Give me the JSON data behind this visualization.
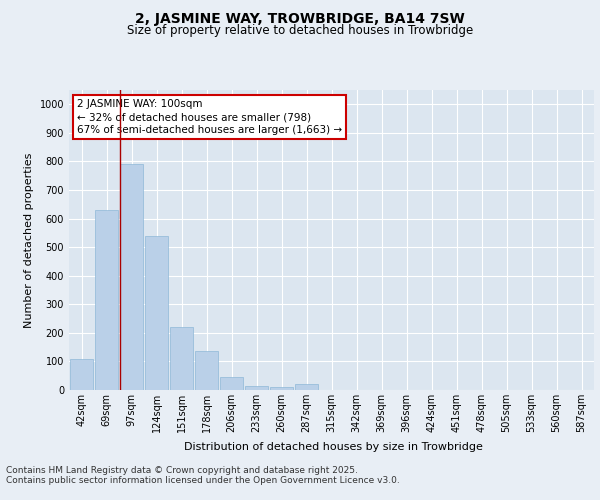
{
  "title": "2, JASMINE WAY, TROWBRIDGE, BA14 7SW",
  "subtitle": "Size of property relative to detached houses in Trowbridge",
  "xlabel": "Distribution of detached houses by size in Trowbridge",
  "ylabel": "Number of detached properties",
  "categories": [
    "42sqm",
    "69sqm",
    "97sqm",
    "124sqm",
    "151sqm",
    "178sqm",
    "206sqm",
    "233sqm",
    "260sqm",
    "287sqm",
    "315sqm",
    "342sqm",
    "369sqm",
    "396sqm",
    "424sqm",
    "451sqm",
    "478sqm",
    "505sqm",
    "533sqm",
    "560sqm",
    "587sqm"
  ],
  "values": [
    110,
    630,
    790,
    540,
    220,
    135,
    45,
    15,
    10,
    20,
    0,
    0,
    0,
    0,
    0,
    0,
    0,
    0,
    0,
    0,
    0
  ],
  "bar_color": "#bad0e8",
  "bar_edge_color": "#8fb8d8",
  "vline_x_index": 2,
  "vline_color": "#aa0000",
  "annotation_title": "2 JASMINE WAY: 100sqm",
  "annotation_line2": "← 32% of detached houses are smaller (798)",
  "annotation_line3": "67% of semi-detached houses are larger (1,663) →",
  "annotation_box_color": "#cc0000",
  "ylim": [
    0,
    1050
  ],
  "yticks": [
    0,
    100,
    200,
    300,
    400,
    500,
    600,
    700,
    800,
    900,
    1000
  ],
  "footer_line1": "Contains HM Land Registry data © Crown copyright and database right 2025.",
  "footer_line2": "Contains public sector information licensed under the Open Government Licence v3.0.",
  "bg_color": "#dce6f0",
  "fig_color": "#e8eef5",
  "title_fontsize": 10,
  "subtitle_fontsize": 8.5,
  "tick_fontsize": 7,
  "label_fontsize": 8,
  "footer_fontsize": 6.5,
  "annotation_fontsize": 7.5
}
